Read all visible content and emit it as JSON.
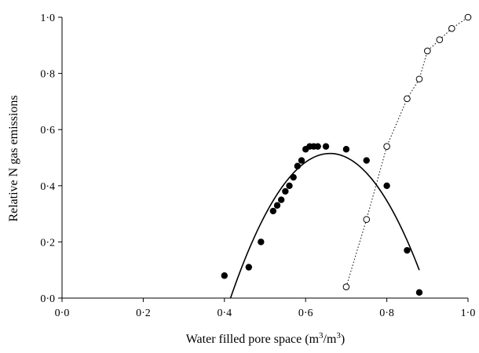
{
  "chart_data": {
    "type": "scatter",
    "xlabel": "Water filled pore space (m3/m3)",
    "xlabel_main": "Water filled pore space (m",
    "xlabel_sup1": "3",
    "xlabel_mid": "/m",
    "xlabel_sup2": "3",
    "xlabel_end": ")",
    "ylabel": "Relative N gas emissions",
    "xlim": [
      0.0,
      1.0
    ],
    "ylim": [
      0.0,
      1.0
    ],
    "x_ticks": [
      0.0,
      0.2,
      0.4,
      0.6,
      0.8,
      1.0
    ],
    "x_tick_labels": [
      "0·0",
      "0·2",
      "0·4",
      "0·6",
      "0·8",
      "1·0"
    ],
    "y_ticks": [
      0.0,
      0.2,
      0.4,
      0.6,
      0.8,
      1.0
    ],
    "y_tick_labels": [
      "0·0",
      "0·2",
      "0·4",
      "0·6",
      "0·8",
      "1·0"
    ],
    "grid": false,
    "legend": "none",
    "series": [
      {
        "marker": "filled-circle",
        "color": "#000000",
        "points": [
          [
            0.4,
            0.08
          ],
          [
            0.46,
            0.11
          ],
          [
            0.49,
            0.2
          ],
          [
            0.52,
            0.31
          ],
          [
            0.53,
            0.33
          ],
          [
            0.54,
            0.35
          ],
          [
            0.55,
            0.38
          ],
          [
            0.56,
            0.4
          ],
          [
            0.57,
            0.43
          ],
          [
            0.58,
            0.47
          ],
          [
            0.59,
            0.49
          ],
          [
            0.6,
            0.53
          ],
          [
            0.61,
            0.54
          ],
          [
            0.62,
            0.54
          ],
          [
            0.63,
            0.54
          ],
          [
            0.65,
            0.54
          ],
          [
            0.7,
            0.53
          ],
          [
            0.75,
            0.49
          ],
          [
            0.8,
            0.4
          ],
          [
            0.85,
            0.17
          ],
          [
            0.88,
            0.02
          ]
        ]
      },
      {
        "marker": "open-circle",
        "line": "dotted",
        "color": "#000000",
        "points": [
          [
            0.7,
            0.04
          ],
          [
            0.75,
            0.28
          ],
          [
            0.8,
            0.54
          ],
          [
            0.85,
            0.71
          ],
          [
            0.88,
            0.78
          ],
          [
            0.9,
            0.88
          ],
          [
            0.93,
            0.92
          ],
          [
            0.96,
            0.96
          ],
          [
            1.0,
            1.0
          ]
        ]
      }
    ],
    "fit_curve": {
      "type": "quadratic",
      "line": "solid",
      "vertex_x": 0.66,
      "vertex_y": 0.515,
      "x_range": [
        0.415,
        0.88
      ]
    }
  }
}
